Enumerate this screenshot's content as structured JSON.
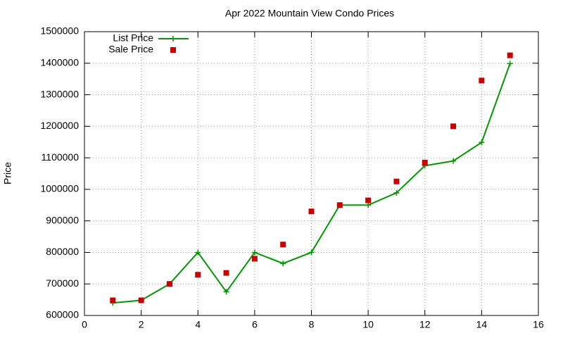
{
  "chart_data": {
    "type": "line",
    "title": "Apr 2022 Mountain View Condo Prices",
    "y_label": "Price",
    "x": [
      1,
      2,
      3,
      4,
      5,
      6,
      7,
      8,
      9,
      10,
      11,
      12,
      13,
      14,
      15
    ],
    "series": [
      {
        "name": "List Price",
        "color": "#009900",
        "mode": "linespoints",
        "values": [
          640000,
          648000,
          700000,
          800000,
          675000,
          800000,
          765000,
          800000,
          950000,
          950000,
          989000,
          1075000,
          1090000,
          1149000,
          1399000
        ]
      },
      {
        "name": "Sale Price",
        "color": "#cc0000",
        "mode": "points",
        "values": [
          648000,
          648000,
          700000,
          729000,
          735000,
          780000,
          825000,
          930000,
          950000,
          965000,
          1025000,
          1085000,
          1200000,
          1345000,
          1425000
        ]
      }
    ],
    "xlim": [
      0,
      16
    ],
    "xticks": [
      0,
      2,
      4,
      6,
      8,
      10,
      12,
      14,
      16
    ],
    "ylim": [
      600000,
      1500000
    ],
    "yticks": [
      600000,
      700000,
      800000,
      900000,
      1000000,
      1100000,
      1200000,
      1300000,
      1400000,
      1500000
    ],
    "grid": true,
    "legend": "top-left"
  }
}
